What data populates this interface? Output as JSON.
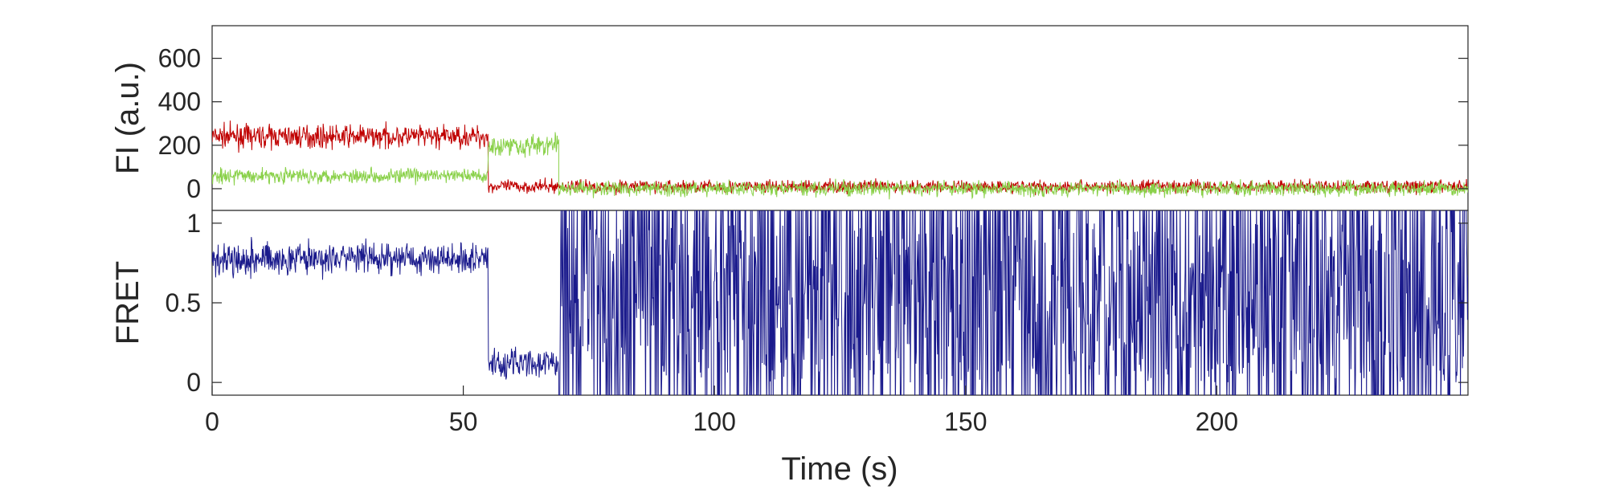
{
  "chart_data": [
    {
      "panel": "top",
      "type": "line",
      "ylabel": "FI (a.u.)",
      "xlim": [
        0,
        250
      ],
      "ylim": [
        -100,
        750
      ],
      "yticks": [
        0,
        200,
        400,
        600
      ],
      "ytick_labels": [
        "0",
        "200",
        "400",
        "600"
      ],
      "grid": false,
      "series": [
        {
          "color": "#c00000",
          "segments": [
            {
              "x": [
                0,
                55
              ],
              "level": 240,
              "noise": 60
            },
            {
              "x": [
                55,
                250
              ],
              "level": 10,
              "noise": 35
            }
          ]
        },
        {
          "color": "#8ad14a",
          "segments": [
            {
              "x": [
                0,
                55
              ],
              "level": 60,
              "noise": 40
            },
            {
              "x": [
                55,
                69
              ],
              "level": 200,
              "noise": 60
            },
            {
              "x": [
                69,
                250
              ],
              "level": 0,
              "noise": 40
            }
          ]
        }
      ]
    },
    {
      "panel": "bottom",
      "type": "line",
      "ylabel": "FRET",
      "xlabel": "Time (s)",
      "xlim": [
        0,
        250
      ],
      "ylim": [
        -0.08,
        1.08
      ],
      "yticks": [
        0,
        0.5,
        1
      ],
      "ytick_labels": [
        "0",
        "0.5",
        "1"
      ],
      "xticks": [
        0,
        50,
        100,
        150,
        200
      ],
      "xtick_labels": [
        "0",
        "50",
        "100",
        "150",
        "200"
      ],
      "grid": false,
      "series": [
        {
          "color": "#1a1a8c",
          "segments": [
            {
              "x": [
                0,
                55
              ],
              "level": 0.78,
              "noise": 0.12
            },
            {
              "x": [
                55,
                69
              ],
              "level": 0.12,
              "noise": 0.12
            },
            {
              "x": [
                69,
                250
              ],
              "level": "random-0-1",
              "noise": 0.5
            }
          ]
        }
      ]
    }
  ]
}
